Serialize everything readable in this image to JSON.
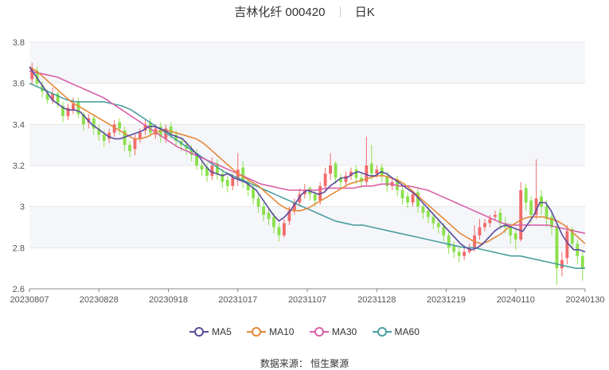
{
  "title": {
    "stock_name": "吉林化纤",
    "stock_code": "000420",
    "period": "日K"
  },
  "source_label": "数据来源：",
  "source_value": "恒生聚源",
  "colors": {
    "up": "#f26b6b",
    "down": "#8be04e",
    "ma5": "#5b4a9e",
    "ma10": "#e5893a",
    "ma30": "#d960a8",
    "ma60": "#4a9ea0",
    "band": "#f5f6fa",
    "grid": "#e6e6e6"
  },
  "chart_data": {
    "type": "candlestick",
    "x_tick_labels": [
      "20230807",
      "20230828",
      "20230918",
      "20231017",
      "20231107",
      "20231128",
      "20231219",
      "20240110",
      "20240130"
    ],
    "ylim": [
      2.6,
      3.8
    ],
    "y_ticks": [
      "2.6",
      "2.8",
      "3",
      "3.2",
      "3.4",
      "3.6",
      "3.8"
    ],
    "legend": [
      {
        "name": "MA5",
        "color_key": "ma5"
      },
      {
        "name": "MA10",
        "color_key": "ma10"
      },
      {
        "name": "MA30",
        "color_key": "ma30"
      },
      {
        "name": "MA60",
        "color_key": "ma60"
      }
    ],
    "close": [
      3.67,
      3.6,
      3.56,
      3.52,
      3.55,
      3.5,
      3.44,
      3.48,
      3.5,
      3.45,
      3.4,
      3.43,
      3.38,
      3.35,
      3.32,
      3.36,
      3.4,
      3.38,
      3.3,
      3.27,
      3.33,
      3.36,
      3.4,
      3.36,
      3.38,
      3.34,
      3.38,
      3.35,
      3.32,
      3.3,
      3.28,
      3.25,
      3.2,
      3.18,
      3.15,
      3.2,
      3.16,
      3.12,
      3.1,
      3.14,
      3.18,
      3.12,
      3.08,
      3.04,
      3.0,
      2.96,
      2.94,
      2.9,
      2.86,
      2.92,
      2.98,
      3.02,
      3.06,
      3.08,
      3.06,
      3.03,
      3.1,
      3.16,
      3.2,
      3.14,
      3.12,
      3.15,
      3.17,
      3.14,
      3.12,
      3.2,
      3.16,
      3.18,
      3.15,
      3.1,
      3.12,
      3.08,
      3.04,
      3.02,
      3.06,
      3.0,
      2.97,
      2.95,
      2.92,
      2.9,
      2.86,
      2.8,
      2.78,
      2.76,
      2.78,
      2.8,
      2.86,
      2.9,
      2.92,
      2.94,
      2.96,
      2.92,
      2.9,
      2.86,
      2.84,
      3.08,
      3.02,
      2.96,
      3.04,
      3.0,
      2.94,
      2.9,
      2.7,
      2.74,
      2.88,
      2.82,
      2.76,
      2.7
    ],
    "open": [
      3.62,
      3.66,
      3.59,
      3.55,
      3.52,
      3.55,
      3.49,
      3.44,
      3.47,
      3.51,
      3.45,
      3.41,
      3.43,
      3.38,
      3.35,
      3.33,
      3.36,
      3.41,
      3.37,
      3.3,
      3.28,
      3.33,
      3.37,
      3.41,
      3.35,
      3.39,
      3.33,
      3.39,
      3.35,
      3.32,
      3.3,
      3.28,
      3.26,
      3.2,
      3.19,
      3.15,
      3.21,
      3.16,
      3.13,
      3.1,
      3.13,
      3.19,
      3.12,
      3.09,
      3.04,
      3.0,
      2.97,
      2.95,
      2.9,
      2.86,
      2.93,
      2.98,
      3.02,
      3.06,
      3.09,
      3.06,
      3.03,
      3.1,
      3.16,
      3.21,
      3.14,
      3.12,
      3.15,
      3.18,
      3.14,
      3.12,
      3.21,
      3.16,
      3.19,
      3.15,
      3.1,
      3.13,
      3.08,
      3.05,
      3.02,
      3.07,
      3.0,
      2.98,
      2.95,
      2.92,
      2.9,
      2.86,
      2.81,
      2.78,
      2.76,
      2.78,
      2.8,
      2.86,
      2.9,
      2.92,
      2.95,
      2.97,
      2.92,
      2.9,
      2.87,
      2.84,
      3.09,
      3.03,
      2.96,
      3.05,
      3.0,
      2.95,
      2.9,
      2.7,
      2.75,
      2.89,
      2.82,
      2.76
    ],
    "high": [
      3.7,
      3.68,
      3.61,
      3.57,
      3.58,
      3.56,
      3.51,
      3.5,
      3.53,
      3.53,
      3.46,
      3.45,
      3.45,
      3.4,
      3.37,
      3.38,
      3.42,
      3.43,
      3.39,
      3.32,
      3.35,
      3.38,
      3.42,
      3.43,
      3.4,
      3.41,
      3.4,
      3.41,
      3.37,
      3.34,
      3.32,
      3.3,
      3.28,
      3.22,
      3.21,
      3.24,
      3.23,
      3.18,
      3.15,
      3.16,
      3.26,
      3.22,
      3.14,
      3.11,
      3.06,
      3.02,
      2.99,
      2.97,
      2.92,
      2.94,
      3.0,
      3.04,
      3.09,
      3.11,
      3.1,
      3.08,
      3.12,
      3.19,
      3.26,
      3.22,
      3.16,
      3.17,
      3.19,
      3.2,
      3.16,
      3.34,
      3.3,
      3.2,
      3.21,
      3.17,
      3.14,
      3.15,
      3.1,
      3.07,
      3.08,
      3.09,
      3.02,
      3.0,
      2.97,
      2.94,
      2.92,
      2.88,
      2.83,
      2.8,
      2.8,
      2.82,
      2.91,
      2.94,
      2.94,
      2.96,
      2.98,
      2.99,
      2.95,
      2.92,
      2.89,
      3.12,
      3.11,
      3.05,
      3.23,
      3.08,
      3.03,
      2.97,
      2.92,
      2.78,
      2.91,
      2.9,
      2.84,
      2.78
    ],
    "low": [
      3.59,
      3.58,
      3.53,
      3.5,
      3.5,
      3.48,
      3.41,
      3.42,
      3.45,
      3.43,
      3.37,
      3.38,
      3.35,
      3.32,
      3.29,
      3.31,
      3.34,
      3.35,
      3.27,
      3.24,
      3.25,
      3.31,
      3.35,
      3.34,
      3.33,
      3.31,
      3.31,
      3.33,
      3.29,
      3.27,
      3.25,
      3.22,
      3.18,
      3.15,
      3.12,
      3.13,
      3.13,
      3.09,
      3.07,
      3.08,
      3.1,
      3.09,
      3.05,
      3.01,
      2.97,
      2.93,
      2.91,
      2.87,
      2.83,
      2.85,
      2.91,
      2.96,
      3.0,
      3.04,
      3.03,
      3.0,
      3.01,
      3.08,
      3.13,
      3.11,
      3.09,
      3.1,
      3.13,
      3.11,
      3.09,
      3.1,
      3.13,
      3.14,
      3.12,
      3.07,
      3.08,
      3.05,
      3.01,
      2.99,
      3.0,
      2.97,
      2.94,
      2.92,
      2.89,
      2.87,
      2.83,
      2.77,
      2.75,
      2.73,
      2.74,
      2.77,
      2.78,
      2.84,
      2.88,
      2.9,
      2.93,
      2.89,
      2.87,
      2.82,
      2.79,
      2.83,
      2.98,
      2.92,
      2.94,
      2.96,
      2.9,
      2.86,
      2.62,
      2.66,
      2.72,
      2.79,
      2.72,
      2.64
    ],
    "ma5": [
      3.68,
      3.64,
      3.6,
      3.56,
      3.52,
      3.5,
      3.48,
      3.47,
      3.47,
      3.46,
      3.43,
      3.4,
      3.38,
      3.36,
      3.34,
      3.33,
      3.33,
      3.34,
      3.35,
      3.36,
      3.37,
      3.39,
      3.39,
      3.38,
      3.37,
      3.35,
      3.34,
      3.33,
      3.3,
      3.27,
      3.24,
      3.2,
      3.17,
      3.16,
      3.15,
      3.16,
      3.14,
      3.13,
      3.12,
      3.1,
      3.08,
      3.04,
      3.0,
      2.96,
      2.93,
      2.95,
      2.98,
      3.02,
      3.06,
      3.08,
      3.07,
      3.06,
      3.07,
      3.1,
      3.12,
      3.14,
      3.14,
      3.16,
      3.17,
      3.16,
      3.15,
      3.15,
      3.17,
      3.16,
      3.14,
      3.12,
      3.1,
      3.08,
      3.06,
      3.03,
      3.0,
      2.97,
      2.94,
      2.91,
      2.88,
      2.85,
      2.82,
      2.8,
      2.79,
      2.8,
      2.82,
      2.85,
      2.88,
      2.9,
      2.91,
      2.9,
      2.89,
      2.88,
      2.92,
      2.96,
      3.02,
      3.02,
      2.98,
      2.92,
      2.86,
      2.82,
      2.79,
      2.79,
      2.78
    ],
    "ma10": [
      3.68,
      3.66,
      3.63,
      3.6,
      3.57,
      3.54,
      3.51,
      3.49,
      3.47,
      3.45,
      3.43,
      3.41,
      3.39,
      3.37,
      3.35,
      3.33,
      3.33,
      3.34,
      3.36,
      3.37,
      3.37,
      3.36,
      3.35,
      3.34,
      3.33,
      3.31,
      3.28,
      3.25,
      3.22,
      3.19,
      3.16,
      3.14,
      3.12,
      3.1,
      3.07,
      3.04,
      3.01,
      2.99,
      2.98,
      2.98,
      2.99,
      3.01,
      3.03,
      3.05,
      3.07,
      3.09,
      3.11,
      3.12,
      3.13,
      3.14,
      3.15,
      3.15,
      3.14,
      3.13,
      3.11,
      3.08,
      3.05,
      3.02,
      2.99,
      2.96,
      2.93,
      2.9,
      2.87,
      2.85,
      2.83,
      2.82,
      2.83,
      2.85,
      2.87,
      2.9,
      2.92,
      2.94,
      2.95,
      2.95,
      2.95,
      2.94,
      2.93,
      2.91,
      2.88,
      2.85,
      2.82
    ],
    "ma30": [
      3.66,
      3.65,
      3.64,
      3.63,
      3.61,
      3.59,
      3.57,
      3.55,
      3.53,
      3.5,
      3.47,
      3.44,
      3.41,
      3.38,
      3.35,
      3.32,
      3.29,
      3.27,
      3.25,
      3.23,
      3.21,
      3.19,
      3.17,
      3.15,
      3.13,
      3.11,
      3.1,
      3.09,
      3.08,
      3.08,
      3.08,
      3.08,
      3.09,
      3.09,
      3.09,
      3.09,
      3.1,
      3.1,
      3.11,
      3.11,
      3.1,
      3.1,
      3.09,
      3.08,
      3.06,
      3.04,
      3.02,
      3.0,
      2.98,
      2.96,
      2.94,
      2.92,
      2.91,
      2.91,
      2.91,
      2.91,
      2.91,
      2.9,
      2.89,
      2.88,
      2.87
    ],
    "ma60": [
      3.6,
      3.58,
      3.56,
      3.54,
      3.52,
      3.51,
      3.51,
      3.51,
      3.51,
      3.5,
      3.49,
      3.47,
      3.44,
      3.41,
      3.38,
      3.35,
      3.32,
      3.29,
      3.26,
      3.23,
      3.2,
      3.17,
      3.15,
      3.13,
      3.11,
      3.09,
      3.07,
      3.05,
      3.03,
      3.01,
      2.99,
      2.97,
      2.95,
      2.93,
      2.92,
      2.91,
      2.91,
      2.9,
      2.89,
      2.88,
      2.87,
      2.86,
      2.85,
      2.84,
      2.83,
      2.82,
      2.81,
      2.8,
      2.8,
      2.79,
      2.78,
      2.77,
      2.76,
      2.76,
      2.75,
      2.74,
      2.73,
      2.72,
      2.71,
      2.7,
      2.7
    ]
  }
}
